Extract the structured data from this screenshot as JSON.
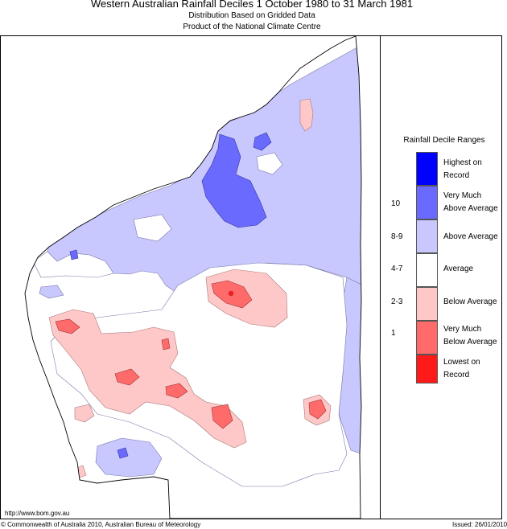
{
  "header": {
    "title": "Western Australian Rainfall Deciles     1 October 1980 to 31 March 1981",
    "subtitle1": "Distribution Based on Gridded Data",
    "subtitle2": "Product of the National Climate Centre"
  },
  "legend": {
    "title": "Rainfall Decile Ranges",
    "items": [
      {
        "label1": "Highest on",
        "label2": "Record",
        "range": "",
        "color": "#0000ff"
      },
      {
        "label1": "Very Much",
        "label2": "Above Average",
        "range": "10",
        "color": "#6a6aff"
      },
      {
        "label1": "Above Average",
        "label2": "",
        "range": "8-9",
        "color": "#c8c8ff"
      },
      {
        "label1": "Average",
        "label2": "",
        "range": "4-7",
        "color": "#ffffff"
      },
      {
        "label1": "Below Average",
        "label2": "",
        "range": "2-3",
        "color": "#ffc8c8"
      },
      {
        "label1": "Very Much",
        "label2": "Below Average",
        "range": "1",
        "color": "#ff6a6a"
      },
      {
        "label1": "Lowest on",
        "label2": "Record",
        "range": "",
        "color": "#ff1a1a"
      }
    ]
  },
  "footer": {
    "url": "http://www.bom.gov.au",
    "copyright": "© Commonwealth of Australia 2010, Australian Bureau of Meteorology",
    "issued": "Issued: 26/01/2010"
  }
}
